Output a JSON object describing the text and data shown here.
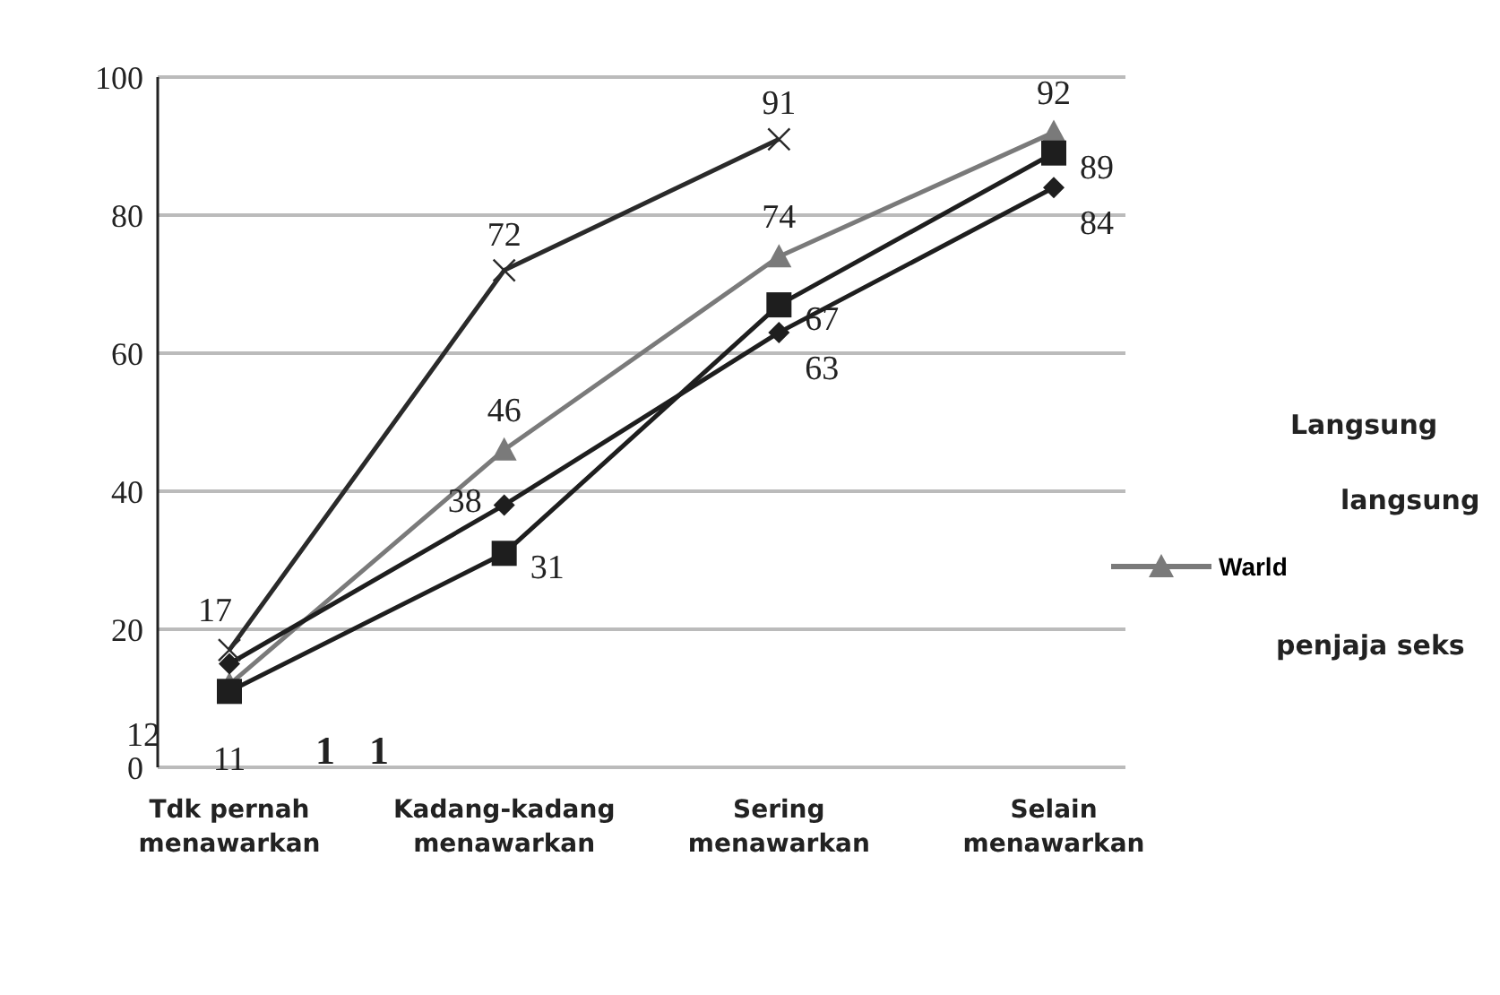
{
  "chart_data": {
    "type": "line",
    "categories": [
      "Tdk pernah\nmenawarkan",
      "Kadang-kadang\nmenawarkan",
      "Sering\nmenawarkan",
      "Selain\nmenawarkan"
    ],
    "series": [
      {
        "color": "#2a2a2a",
        "marker": "cross",
        "values": [
          17,
          72,
          91,
          null
        ],
        "value_labels": [
          "17",
          "72",
          "91",
          null
        ]
      },
      {
        "name": "Warld",
        "color": "#7a7a7a",
        "marker": "triangle",
        "values": [
          12,
          46,
          74,
          92
        ],
        "value_labels": [
          "12",
          "46",
          "74",
          "92"
        ]
      },
      {
        "color": "#1e1e1e",
        "marker": "diamond",
        "values": [
          15,
          38,
          63,
          84
        ],
        "value_labels": [
          null,
          "38",
          "63",
          "84"
        ]
      },
      {
        "color": "#1e1e1e",
        "marker": "square",
        "values": [
          11,
          31,
          67,
          89
        ],
        "value_labels": [
          "11",
          "31",
          "67",
          "89"
        ]
      }
    ],
    "ylim": [
      0,
      100
    ],
    "yticks": [
      0,
      20,
      40,
      60,
      80,
      100
    ],
    "grid": "y",
    "legend": "right",
    "annotations": [
      "1",
      "1",
      "Langsung",
      "langsung",
      "penjaja seks"
    ]
  }
}
